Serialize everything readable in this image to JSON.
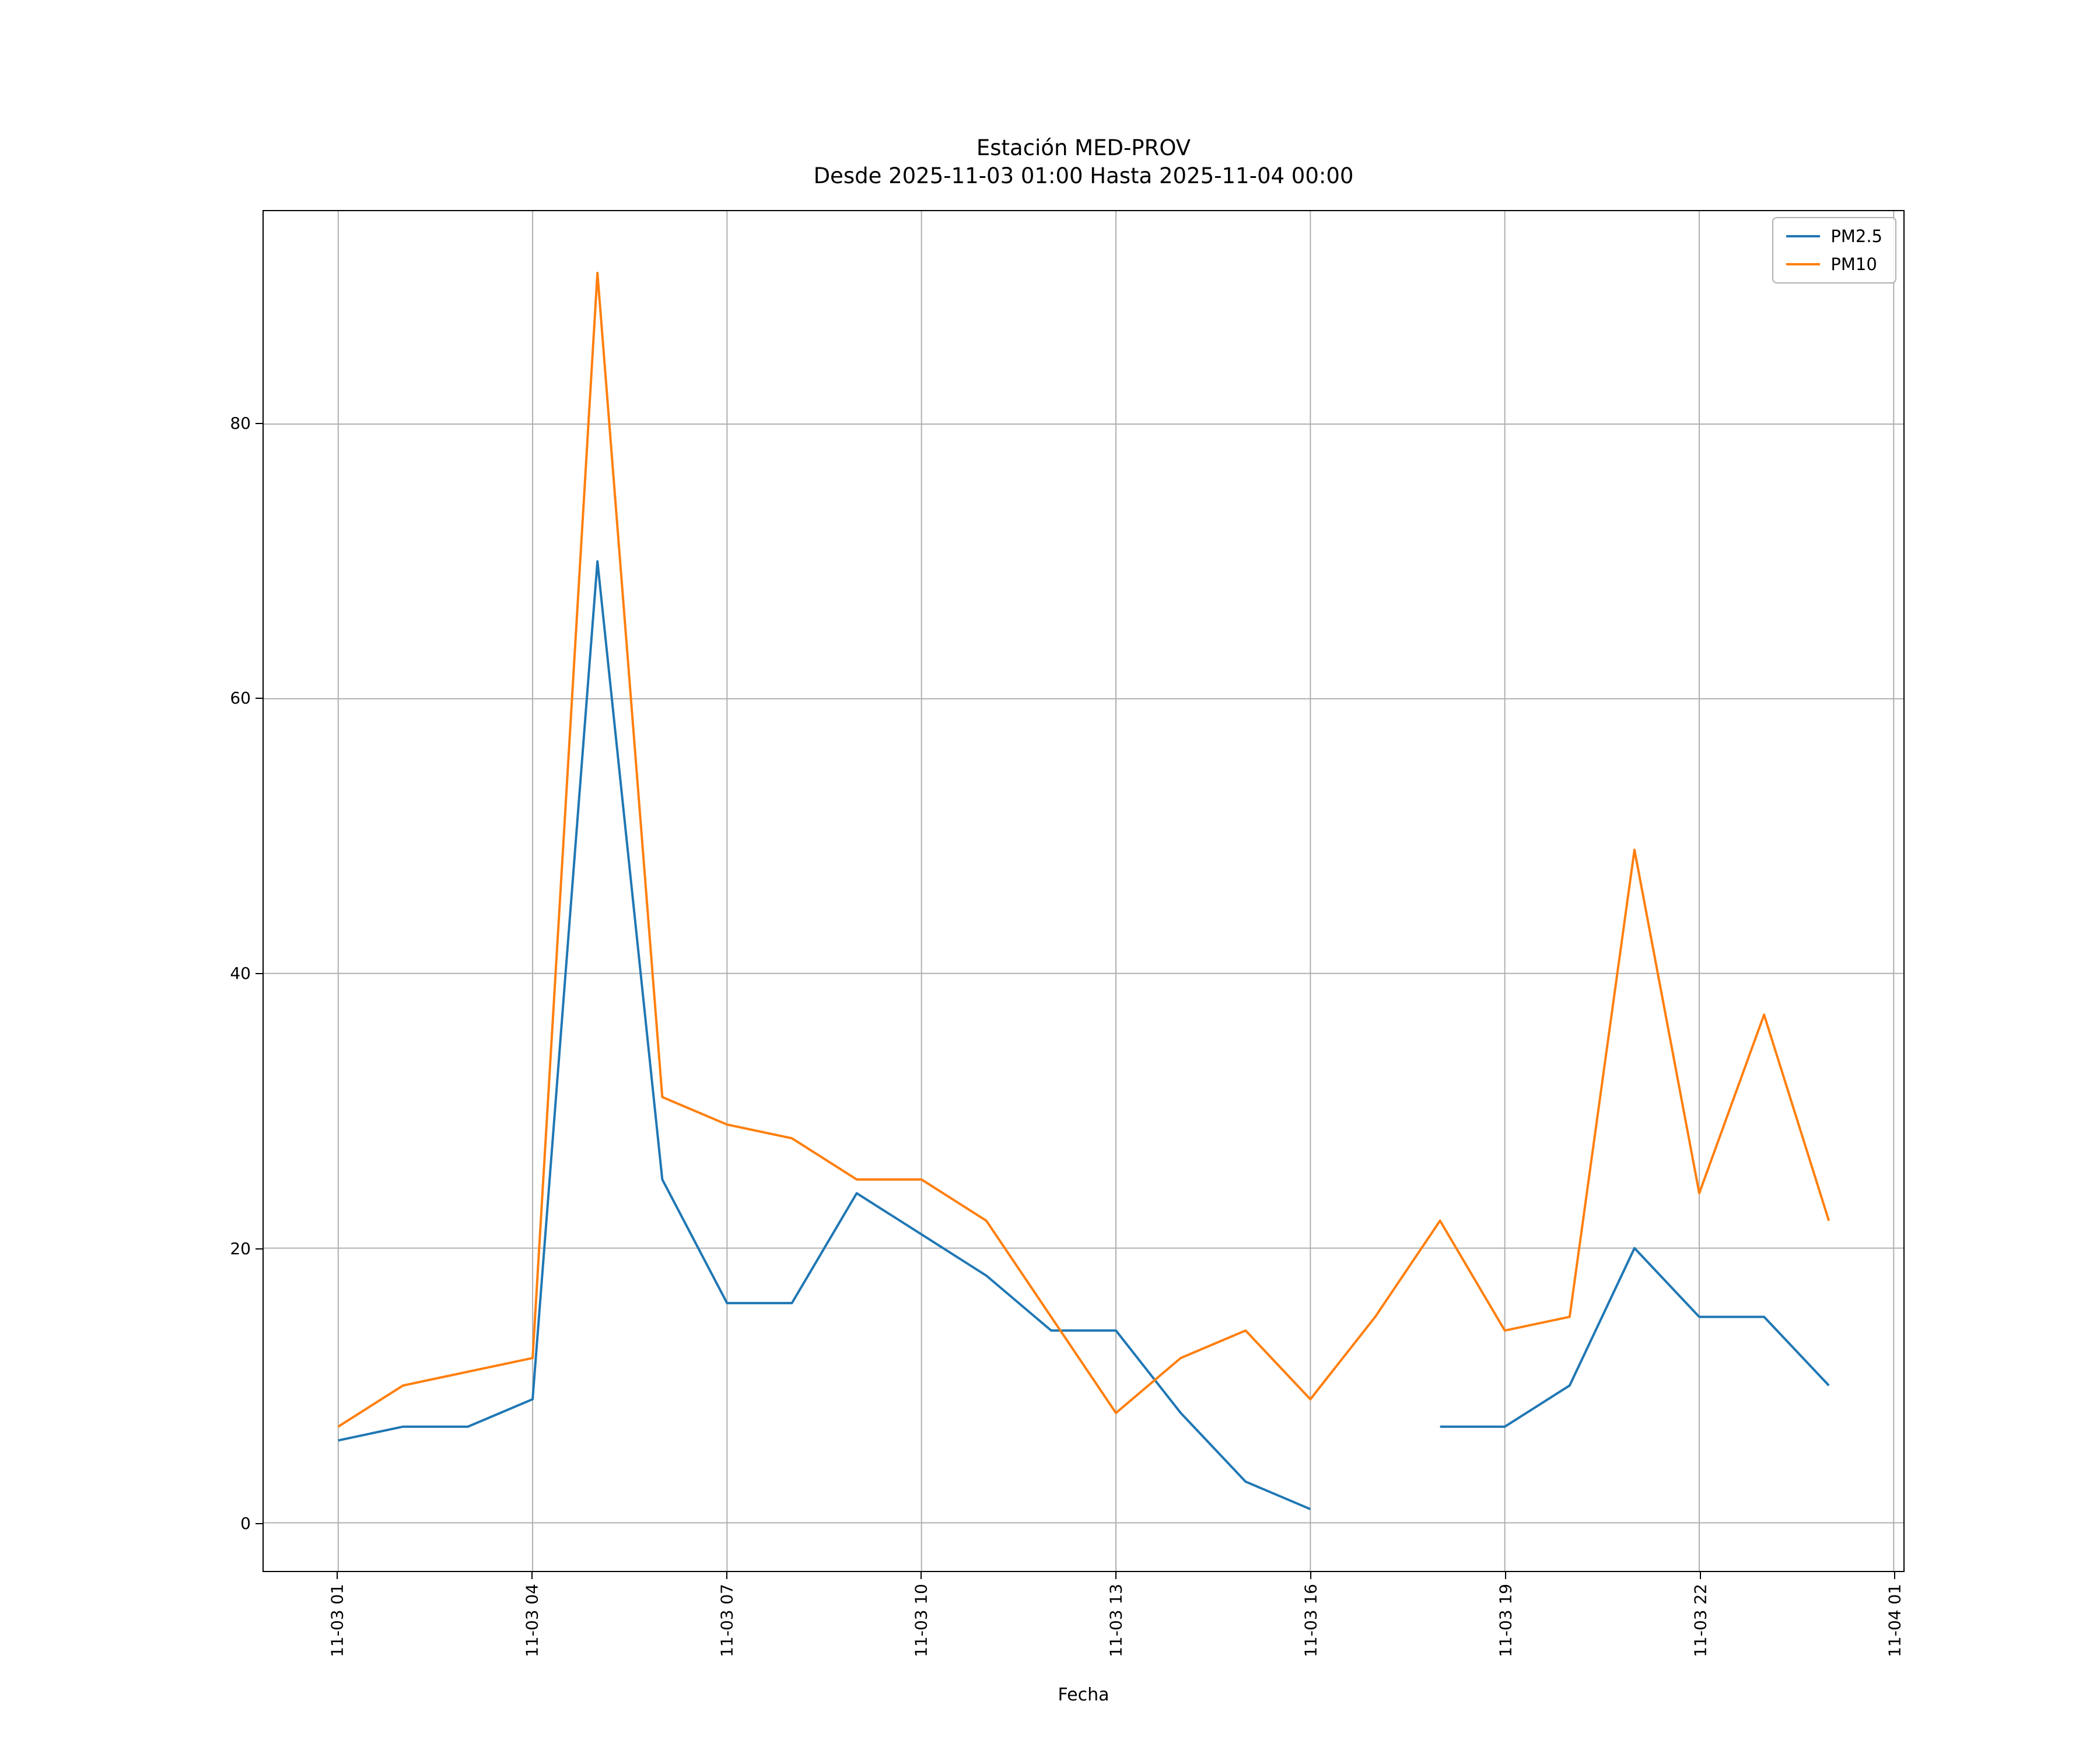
{
  "chart_data": {
    "type": "line",
    "title": "Estación MED-PROV",
    "subtitle": "Desde 2025-11-03 01:00 Hasta 2025-11-04 00:00",
    "xlabel": "Fecha",
    "ylabel": "",
    "x_hours": [
      1,
      2,
      3,
      4,
      5,
      6,
      7,
      8,
      9,
      10,
      11,
      12,
      13,
      14,
      15,
      16,
      17,
      18,
      19,
      20,
      21,
      22,
      23,
      24
    ],
    "series": [
      {
        "name": "PM2.5",
        "color": "#1f77b4",
        "values": [
          6,
          7,
          7,
          9,
          70,
          25,
          16,
          16,
          24,
          21,
          18,
          14,
          14,
          8,
          3,
          1,
          null,
          7,
          7,
          10,
          20,
          15,
          15,
          10
        ]
      },
      {
        "name": "PM10",
        "color": "#ff7f0e",
        "values": [
          7,
          10,
          11,
          12,
          91,
          31,
          29,
          28,
          25,
          25,
          22,
          15,
          8,
          12,
          14,
          9,
          15,
          22,
          14,
          15,
          49,
          24,
          37,
          22
        ]
      }
    ],
    "xticks": {
      "positions": [
        1,
        4,
        7,
        10,
        13,
        16,
        19,
        22,
        25
      ],
      "labels": [
        "11-03 01",
        "11-03 04",
        "11-03 07",
        "11-03 10",
        "11-03 13",
        "11-03 16",
        "11-03 19",
        "11-03 22",
        "11-04 01"
      ]
    },
    "yticks": [
      0,
      20,
      40,
      60,
      80
    ],
    "xlim": [
      -0.15,
      25.15
    ],
    "ylim": [
      -3.5,
      95.5
    ],
    "grid": true,
    "legend_position": "upper right",
    "colors": {
      "grid": "#b0b0b0",
      "axes": "#000000",
      "background": "#ffffff"
    }
  }
}
